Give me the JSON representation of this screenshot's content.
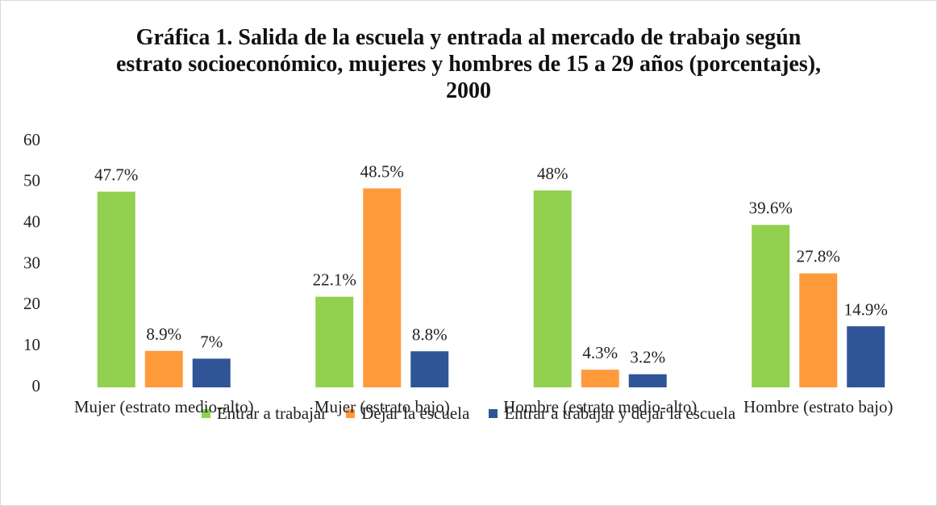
{
  "chart_data": {
    "type": "bar",
    "title": "Gráfica 1. Salida de la escuela y entrada al mercado de trabajo según estrato socioeconómico, mujeres y hombres de 15 a 29 años (porcentajes), 2000",
    "categories": [
      "Mujer (estrato medio-alto)",
      "Mujer (estrato bajo)",
      "Hombre (estrato medio-alto)",
      "Hombre (estrato bajo)"
    ],
    "series": [
      {
        "name": "Entrar a trabajar",
        "color": "#92d050",
        "values": [
          47.7,
          22.1,
          48,
          39.6
        ],
        "value_labels": [
          "47.7%",
          "22.1%",
          "48%",
          "39.6%"
        ]
      },
      {
        "name": "Dejar la escuela",
        "color": "#ff9a3c",
        "values": [
          8.9,
          48.5,
          4.3,
          27.8
        ],
        "value_labels": [
          "8.9%",
          "48.5%",
          "4.3%",
          "27.8%"
        ]
      },
      {
        "name": "Entrar a trabajar y dejar la escuela",
        "color": "#2f5597",
        "values": [
          7,
          8.8,
          3.2,
          14.9
        ],
        "value_labels": [
          "7%",
          "8.8%",
          "3.2%",
          "14.9%"
        ]
      }
    ],
    "ylim": [
      0,
      60
    ],
    "yticks": [
      0,
      10,
      20,
      30,
      40,
      50,
      60
    ],
    "grid": false,
    "legend": "bottom"
  }
}
